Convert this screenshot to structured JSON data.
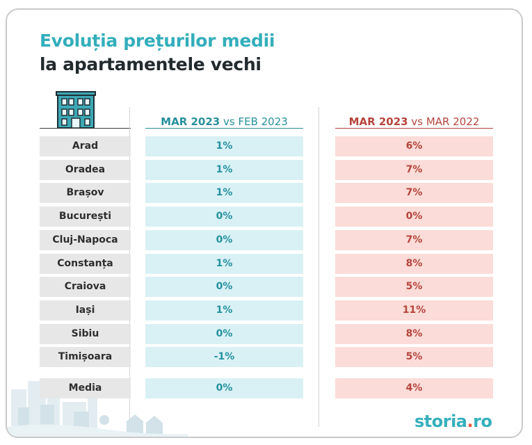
{
  "title": {
    "line1": "Evoluția prețurilor medii",
    "line2": "la apartamentele vechi"
  },
  "columns": {
    "mom": {
      "bold": "MAR 2023",
      "rest": " vs FEB 2023"
    },
    "yoy": {
      "bold": "MAR 2023",
      "rest": " vs MAR 2022"
    }
  },
  "logo": {
    "part1": "storia",
    "dot": ".",
    "part2": "ro"
  },
  "colors": {
    "teal": "#33aebb",
    "red": "#b5443c",
    "teal_bg": "#d9f1f5",
    "red_bg": "#fbdcd8"
  },
  "chart_data": {
    "type": "table",
    "title": "Evoluția prețurilor medii la apartamentele vechi",
    "categories": [
      "Arad",
      "Oradea",
      "Brașov",
      "București",
      "Cluj-Napoca",
      "Constanța",
      "Craiova",
      "Iași",
      "Sibiu",
      "Timișoara"
    ],
    "series": [
      {
        "name": "MAR 2023 vs FEB 2023",
        "values": [
          1,
          1,
          1,
          0,
          0,
          1,
          0,
          1,
          0,
          -1
        ],
        "unit": "%"
      },
      {
        "name": "MAR 2023 vs MAR 2022",
        "values": [
          6,
          7,
          7,
          0,
          7,
          8,
          5,
          11,
          8,
          5
        ],
        "unit": "%"
      }
    ],
    "summary": {
      "label": "Media",
      "values": [
        0,
        4
      ]
    }
  }
}
